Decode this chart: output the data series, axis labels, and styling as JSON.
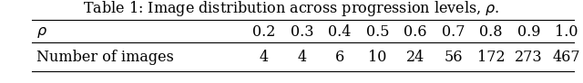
{
  "title": "Table 1: Image distribution across progression levels, $\\rho$.",
  "col_header_label": "$\\rho$",
  "col_values": [
    "0.2",
    "0.3",
    "0.4",
    "0.5",
    "0.6",
    "0.7",
    "0.8",
    "0.9",
    "1.0"
  ],
  "row_label": "Number of images",
  "row_values": [
    "4",
    "4",
    "6",
    "10",
    "24",
    "56",
    "172",
    "273",
    "467"
  ],
  "background_color": "#ffffff",
  "text_color": "#000000",
  "title_fontsize": 11.5,
  "table_fontsize": 11.5
}
